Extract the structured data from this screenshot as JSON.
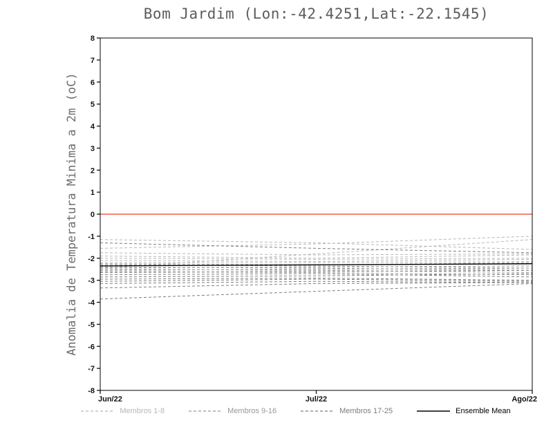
{
  "title": "Bom Jardim (Lon:-42.4251,Lat:-22.1545)",
  "y_axis_label": "Anomalia de Temperatura Minima a 2m (oC)",
  "legend": {
    "items": [
      {
        "label": "Membros 1-8",
        "color": "#b7b7b7",
        "line_style": "dashed"
      },
      {
        "label": "Membros 9-16",
        "color": "#989898",
        "line_style": "dashed"
      },
      {
        "label": "Membros 17-25",
        "color": "#7c7c7c",
        "line_style": "dashed"
      },
      {
        "label": "Ensemble Mean",
        "color": "#000000",
        "line_style": "solid"
      }
    ]
  },
  "chart_data": {
    "type": "line",
    "title": "Bom Jardim (Lon:-42.4251,Lat:-22.1545)",
    "xlabel": "",
    "ylabel": "Anomalia de Temperatura Minima a 2m (oC)",
    "x_categories": [
      "Jun/22",
      "Jul/22",
      "Ago/22"
    ],
    "ylim": [
      -8,
      8
    ],
    "y_tick_step": 1,
    "grid": false,
    "axis_color": "#000000",
    "tick_label_color": "#111111",
    "zero_line": {
      "y": 0,
      "color": "#ef3b2c"
    },
    "legend_position": "bottom",
    "groups": [
      {
        "name": "Membros 1-8",
        "color": "#b7b7b7",
        "dash": "4 3",
        "members": [
          [
            -1.15,
            -1.3,
            -1.6
          ],
          [
            -1.55,
            -1.35,
            -1.0
          ],
          [
            -2.45,
            -1.8,
            -1.15
          ],
          [
            -1.75,
            -1.85,
            -1.8
          ],
          [
            -1.9,
            -2.0,
            -1.85
          ],
          [
            -2.0,
            -2.05,
            -2.0
          ],
          [
            -2.1,
            -2.15,
            -2.05
          ],
          [
            -2.2,
            -2.2,
            -2.15
          ]
        ]
      },
      {
        "name": "Membros 9-16",
        "color": "#989898",
        "dash": "4 3",
        "members": [
          [
            -2.25,
            -2.3,
            -2.2
          ],
          [
            -2.3,
            -2.35,
            -2.45
          ],
          [
            -2.35,
            -2.3,
            -2.25
          ],
          [
            -2.4,
            -2.45,
            -2.55
          ],
          [
            -2.45,
            -2.4,
            -2.35
          ],
          [
            -2.5,
            -2.55,
            -2.65
          ],
          [
            -2.55,
            -2.5,
            -2.45
          ],
          [
            -2.6,
            -2.65,
            -2.75
          ]
        ]
      },
      {
        "name": "Membros 17-25",
        "color": "#7c7c7c",
        "dash": "4 3",
        "members": [
          [
            -2.65,
            -2.6,
            -2.55
          ],
          [
            -2.75,
            -2.7,
            -2.85
          ],
          [
            -2.85,
            -2.8,
            -2.7
          ],
          [
            -2.95,
            -2.9,
            -3.0
          ],
          [
            -3.05,
            -2.95,
            -3.05
          ],
          [
            -3.15,
            -3.05,
            -3.1
          ],
          [
            -3.35,
            -3.15,
            -3.1
          ],
          [
            -1.3,
            -1.55,
            -1.75
          ],
          [
            -3.85,
            -3.5,
            -3.15
          ]
        ]
      }
    ],
    "ensemble_mean": {
      "name": "Ensemble Mean",
      "color": "#000000",
      "values": [
        -2.35,
        -2.3,
        -2.25
      ]
    }
  }
}
